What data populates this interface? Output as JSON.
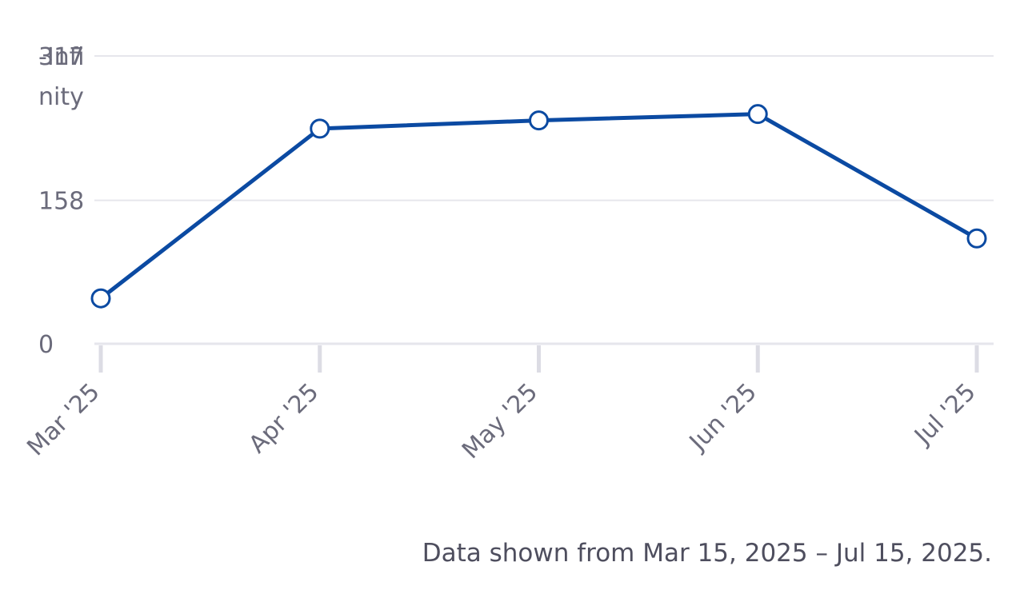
{
  "chart_data": {
    "type": "line",
    "categories": [
      "Mar '25",
      "Apr '25",
      "May '25",
      "Jun '25",
      "Jul '25"
    ],
    "series": [
      {
        "values": [
          50,
          237,
          246,
          253,
          116
        ]
      }
    ],
    "yticks": [
      "0",
      "158",
      "317"
    ],
    "y_overlap_label": "-Infinity",
    "ylim": [
      0,
      317
    ],
    "grid": true,
    "line_color": "#0b4aa2",
    "marker_fill": "#ffffff",
    "grid_color": "#e6e6ec",
    "text_color": "#6b6b7b"
  },
  "footnote": "Data shown from Mar 15, 2025 – Jul 15, 2025."
}
